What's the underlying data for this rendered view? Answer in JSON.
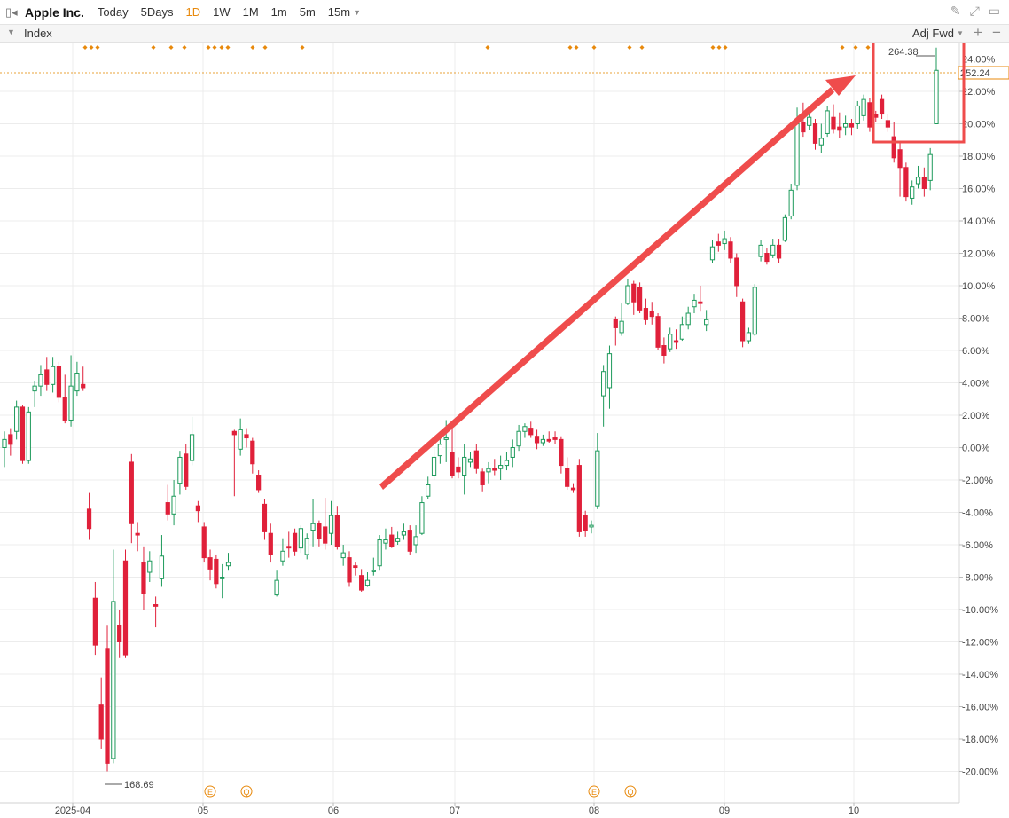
{
  "toolbar": {
    "title": "Apple Inc.",
    "timeframes": [
      "Today",
      "5Days",
      "1D",
      "1W",
      "1M",
      "1m",
      "5m",
      "15m"
    ],
    "active": "1D"
  },
  "indexbar": {
    "label": "Index",
    "adjust": "Adj Fwd"
  },
  "colors": {
    "up": "#1d9a5b",
    "down": "#e0203a",
    "accent": "#e8890c",
    "annotation": "#ef4c4c"
  },
  "chart_data": {
    "type": "candlestick",
    "y_unit": "%",
    "ylim": [
      -20.8,
      24.7
    ],
    "y_ticks": [
      "24.00%",
      "22.00%",
      "20.00%",
      "18.00%",
      "16.00%",
      "14.00%",
      "12.00%",
      "10.00%",
      "8.00%",
      "6.00%",
      "4.00%",
      "2.00%",
      "0.00%",
      "-2.00%",
      "-4.00%",
      "-6.00%",
      "-8.00%",
      "-10.00%",
      "-12.00%",
      "-14.00%",
      "-16.00%",
      "-18.00%",
      "-20.00%"
    ],
    "x_ticks": [
      "2025-04",
      "05",
      "06",
      "07",
      "08",
      "09",
      "10"
    ],
    "current_value": "252.24",
    "max_label": "264.38",
    "min_label": "168.69",
    "event_markers": [
      "E",
      "Q",
      "E",
      "Q"
    ],
    "candles": [
      [
        0.0,
        0.5,
        -1.2,
        1.0
      ],
      [
        0.8,
        0.2,
        -0.5,
        1.2
      ],
      [
        1.0,
        2.5,
        0.5,
        2.9
      ],
      [
        2.5,
        -0.8,
        -1.0,
        2.6
      ],
      [
        -0.8,
        2.2,
        -1.0,
        2.5
      ],
      [
        3.5,
        3.8,
        2.5,
        4.1
      ],
      [
        3.8,
        4.5,
        3.2,
        5.1
      ],
      [
        4.8,
        3.9,
        3.5,
        5.6
      ],
      [
        3.9,
        5.0,
        3.4,
        5.6
      ],
      [
        5.0,
        3.1,
        2.8,
        5.3
      ],
      [
        3.1,
        1.7,
        1.5,
        4.5
      ],
      [
        1.7,
        3.8,
        1.3,
        5.7
      ],
      [
        3.5,
        4.6,
        3.2,
        5.3
      ],
      [
        3.9,
        3.7,
        3.5,
        5.0
      ],
      [
        -3.8,
        -5.0,
        -5.7,
        -2.8
      ],
      [
        -9.3,
        -12.2,
        -12.8,
        -8.3
      ],
      [
        -15.9,
        -18.0,
        -18.6,
        -14.2
      ],
      [
        -12.4,
        -19.5,
        -20.0,
        -11.0
      ],
      [
        -19.2,
        -9.5,
        -19.5,
        -6.3
      ],
      [
        -11.0,
        -12.0,
        -13.0,
        -10.0
      ],
      [
        -7.0,
        -12.8,
        -13.0,
        -6.3
      ],
      [
        -0.9,
        -4.7,
        -5.9,
        -0.4
      ],
      [
        -5.3,
        -5.4,
        -6.4,
        -4.6
      ],
      [
        -7.1,
        -9.0,
        -10.0,
        -6.1
      ],
      [
        -7.7,
        -7.0,
        -8.3,
        -6.4
      ],
      [
        -9.7,
        -9.8,
        -11.1,
        -9.2
      ],
      [
        -8.1,
        -6.7,
        -8.6,
        -5.4
      ],
      [
        -3.4,
        -4.1,
        -4.5,
        -2.3
      ],
      [
        -4.1,
        -3.0,
        -4.8,
        -2.0
      ],
      [
        -2.2,
        -0.6,
        -2.9,
        -0.2
      ],
      [
        -0.4,
        -2.4,
        -2.6,
        0.2
      ],
      [
        -0.8,
        0.8,
        -1.1,
        1.9
      ],
      [
        -3.6,
        -3.9,
        -4.6,
        -3.3
      ],
      [
        -4.9,
        -6.8,
        -7.1,
        -4.6
      ],
      [
        -6.8,
        -7.5,
        -8.2,
        -6.3
      ],
      [
        -6.9,
        -8.4,
        -8.7,
        -6.6
      ],
      [
        -8.1,
        -8.0,
        -9.3,
        -7.2
      ],
      [
        -7.3,
        -7.1,
        -7.6,
        -6.5
      ],
      [
        1.0,
        0.8,
        -3.0,
        1.1
      ],
      [
        -0.1,
        1.1,
        -0.5,
        1.8
      ],
      [
        0.8,
        0.6,
        0.0,
        1.2
      ],
      [
        0.4,
        -1.0,
        -1.6,
        0.6
      ],
      [
        -1.7,
        -2.6,
        -2.8,
        -1.4
      ],
      [
        -3.5,
        -5.2,
        -5.7,
        -3.2
      ],
      [
        -5.3,
        -6.6,
        -7.1,
        -4.7
      ],
      [
        -9.1,
        -8.2,
        -9.2,
        -7.6
      ],
      [
        -7.0,
        -6.4,
        -7.3,
        -5.6
      ],
      [
        -6.1,
        -6.2,
        -6.8,
        -5.2
      ],
      [
        -5.3,
        -6.4,
        -6.7,
        -5.0
      ],
      [
        -6.2,
        -5.0,
        -6.5,
        -4.8
      ],
      [
        -6.6,
        -5.6,
        -6.9,
        -5.3
      ],
      [
        -5.1,
        -4.7,
        -6.1,
        -3.2
      ],
      [
        -4.7,
        -5.6,
        -6.1,
        -4.5
      ],
      [
        -4.9,
        -5.9,
        -6.3,
        -3.1
      ],
      [
        -5.3,
        -4.2,
        -6.0,
        -3.3
      ],
      [
        -4.2,
        -6.1,
        -6.3,
        -3.6
      ],
      [
        -6.8,
        -6.5,
        -7.3,
        -6.0
      ],
      [
        -6.8,
        -8.3,
        -8.6,
        -6.4
      ],
      [
        -7.3,
        -7.4,
        -7.9,
        -7.1
      ],
      [
        -7.9,
        -8.8,
        -8.9,
        -7.5
      ],
      [
        -8.5,
        -8.2,
        -8.6,
        -7.7
      ],
      [
        -7.6,
        -7.6,
        -7.9,
        -6.8
      ],
      [
        -7.3,
        -5.7,
        -7.6,
        -5.4
      ],
      [
        -5.9,
        -5.7,
        -6.3,
        -5.0
      ],
      [
        -5.4,
        -6.1,
        -6.2,
        -4.9
      ],
      [
        -5.8,
        -5.6,
        -6.0,
        -5.2
      ],
      [
        -5.4,
        -5.2,
        -5.7,
        -4.7
      ],
      [
        -5.1,
        -6.4,
        -6.6,
        -4.8
      ],
      [
        -6.0,
        -5.5,
        -6.5,
        -4.8
      ],
      [
        -5.3,
        -3.4,
        -5.4,
        -3.0
      ],
      [
        -3.0,
        -2.3,
        -3.2,
        -1.8
      ],
      [
        -1.7,
        -0.6,
        -2.0,
        0.0
      ],
      [
        -0.5,
        0.2,
        -1.0,
        0.8
      ],
      [
        0.5,
        0.6,
        -0.9,
        1.7
      ],
      [
        -0.3,
        -1.7,
        -1.9,
        1.6
      ],
      [
        -1.2,
        -1.5,
        -1.9,
        -0.6
      ],
      [
        -1.7,
        -0.6,
        -2.9,
        0.2
      ],
      [
        -0.9,
        -0.7,
        -1.2,
        -0.3
      ],
      [
        -0.2,
        -1.3,
        -1.6,
        0.2
      ],
      [
        -1.5,
        -2.3,
        -2.7,
        -1.3
      ],
      [
        -1.5,
        -1.3,
        -2.2,
        -0.9
      ],
      [
        -1.3,
        -1.4,
        -1.7,
        -0.7
      ],
      [
        -1.3,
        -1.1,
        -2.0,
        -0.5
      ],
      [
        -1.1,
        -0.8,
        -1.4,
        -0.3
      ],
      [
        -0.6,
        0.0,
        -1.2,
        0.5
      ],
      [
        0.1,
        1.0,
        -0.2,
        1.4
      ],
      [
        1.0,
        1.3,
        0.6,
        1.5
      ],
      [
        1.2,
        0.8,
        0.6,
        1.6
      ],
      [
        0.7,
        0.3,
        -0.1,
        1.1
      ],
      [
        0.3,
        0.5,
        0.1,
        0.8
      ],
      [
        0.5,
        0.4,
        0.3,
        1.0
      ],
      [
        0.6,
        0.5,
        0.2,
        1.0
      ],
      [
        0.5,
        -1.1,
        -1.6,
        0.7
      ],
      [
        -1.3,
        -2.4,
        -2.6,
        -0.6
      ],
      [
        -2.5,
        -2.6,
        -2.8,
        -2.2
      ],
      [
        -1.1,
        -5.2,
        -5.5,
        -0.7
      ],
      [
        -4.2,
        -5.1,
        -5.5,
        -3.9
      ],
      [
        -4.9,
        -4.8,
        -5.3,
        -4.5
      ],
      [
        -3.6,
        -0.2,
        -3.8,
        0.9
      ],
      [
        3.2,
        4.7,
        1.3,
        5.1
      ],
      [
        3.7,
        5.8,
        2.4,
        6.3
      ],
      [
        7.9,
        7.4,
        6.3,
        8.1
      ],
      [
        7.1,
        7.8,
        6.9,
        8.9
      ],
      [
        8.9,
        10.0,
        8.8,
        10.4
      ],
      [
        10.1,
        9.0,
        8.2,
        10.3
      ],
      [
        9.9,
        8.5,
        8.3,
        10.2
      ],
      [
        8.6,
        7.9,
        7.6,
        9.2
      ],
      [
        8.4,
        8.1,
        7.6,
        9.0
      ],
      [
        8.1,
        6.2,
        6.0,
        8.3
      ],
      [
        6.3,
        5.7,
        5.2,
        6.8
      ],
      [
        6.1,
        7.0,
        5.9,
        7.4
      ],
      [
        6.6,
        6.5,
        6.1,
        7.3
      ],
      [
        6.7,
        7.6,
        6.6,
        8.1
      ],
      [
        7.6,
        8.3,
        7.3,
        8.7
      ],
      [
        8.7,
        9.1,
        8.3,
        9.5
      ],
      [
        9.0,
        8.9,
        8.4,
        10.0
      ],
      [
        7.6,
        7.9,
        7.2,
        8.5
      ],
      [
        11.6,
        12.4,
        11.4,
        12.8
      ],
      [
        12.7,
        12.5,
        12.1,
        13.2
      ],
      [
        12.6,
        12.9,
        12.2,
        13.4
      ],
      [
        12.7,
        11.7,
        11.4,
        13.0
      ],
      [
        11.7,
        10.0,
        9.3,
        12.0
      ],
      [
        9.0,
        6.6,
        6.2,
        9.2
      ],
      [
        6.6,
        7.1,
        6.4,
        7.4
      ],
      [
        7.0,
        9.9,
        6.9,
        10.1
      ],
      [
        11.8,
        12.5,
        11.5,
        12.8
      ],
      [
        12.0,
        11.5,
        11.3,
        12.3
      ],
      [
        11.9,
        12.5,
        11.7,
        12.9
      ],
      [
        12.5,
        11.7,
        11.4,
        12.9
      ],
      [
        12.8,
        14.2,
        12.7,
        14.4
      ],
      [
        14.3,
        15.9,
        14.1,
        16.3
      ],
      [
        16.2,
        20.0,
        15.9,
        21.0
      ],
      [
        20.1,
        19.5,
        19.2,
        21.3
      ],
      [
        19.9,
        20.4,
        19.6,
        20.8
      ],
      [
        20.0,
        18.8,
        18.4,
        20.3
      ],
      [
        18.7,
        19.1,
        18.2,
        20.0
      ],
      [
        19.4,
        20.8,
        19.2,
        21.1
      ],
      [
        20.4,
        19.7,
        19.4,
        21.2
      ],
      [
        19.8,
        19.6,
        19.1,
        20.7
      ],
      [
        19.8,
        20.0,
        19.3,
        20.5
      ],
      [
        20.0,
        19.8,
        19.3,
        20.3
      ],
      [
        20.0,
        21.1,
        19.7,
        21.4
      ],
      [
        20.5,
        21.5,
        20.2,
        21.8
      ],
      [
        21.3,
        19.8,
        19.5,
        21.6
      ],
      [
        20.6,
        20.4,
        20.1,
        20.8
      ],
      [
        21.5,
        20.6,
        20.3,
        21.8
      ],
      [
        20.2,
        19.8,
        19.5,
        20.6
      ],
      [
        19.2,
        17.9,
        17.6,
        20.1
      ],
      [
        18.4,
        17.3,
        15.5,
        18.9
      ],
      [
        17.3,
        15.5,
        15.2,
        17.6
      ],
      [
        15.4,
        16.1,
        15.0,
        16.5
      ],
      [
        16.3,
        16.7,
        16.0,
        17.4
      ],
      [
        16.7,
        16.0,
        15.5,
        17.3
      ],
      [
        16.5,
        18.1,
        15.9,
        18.5
      ],
      [
        20.0,
        23.3,
        20.0,
        24.7
      ]
    ]
  }
}
